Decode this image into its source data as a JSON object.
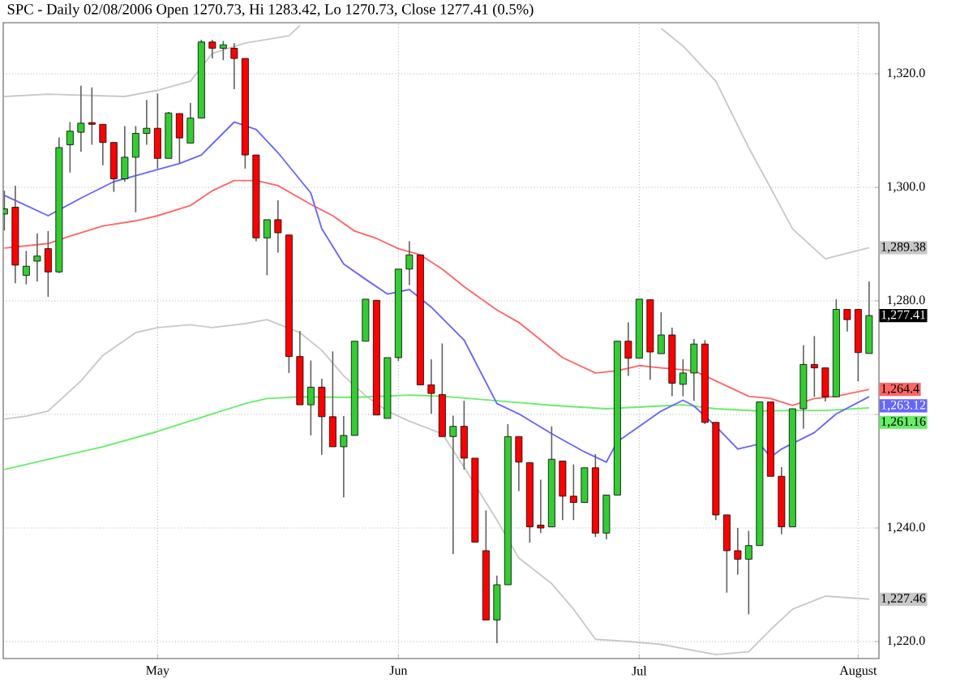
{
  "chart_data": {
    "type": "candlestick",
    "title": "SPC - Daily 02/08/2006 Open 1270.73, Hi 1283.42, Lo 1270.73, Close 1277.41 (0.5%)",
    "categories": [
      null,
      null,
      null,
      null,
      null,
      null,
      null,
      null,
      null,
      null,
      null,
      null,
      null,
      null,
      "May",
      null,
      null,
      null,
      null,
      null,
      null,
      null,
      null,
      null,
      null,
      null,
      null,
      null,
      null,
      null,
      null,
      null,
      null,
      null,
      null,
      null,
      "Jun",
      null,
      null,
      null,
      null,
      null,
      null,
      null,
      null,
      null,
      null,
      null,
      null,
      null,
      null,
      null,
      null,
      null,
      null,
      null,
      null,
      null,
      "Jul",
      null,
      null,
      null,
      null,
      null,
      null,
      null,
      null,
      null,
      null,
      null,
      null,
      null,
      null,
      null,
      null,
      null,
      null,
      null,
      "August",
      null
    ],
    "ohlc": [
      [
        1295.3,
        1299.4,
        1292.4,
        1296.2
      ],
      [
        1296.5,
        1300.3,
        1283.1,
        1286.3
      ],
      [
        1284.5,
        1288.8,
        1282.9,
        1286.1
      ],
      [
        1287.0,
        1291.9,
        1283.4,
        1287.9
      ],
      [
        1289.2,
        1292.3,
        1280.7,
        1285.1
      ],
      [
        1285.1,
        1308.8,
        1284.9,
        1307.0
      ],
      [
        1307.5,
        1311.5,
        1302.6,
        1309.9
      ],
      [
        1309.7,
        1317.9,
        1306.3,
        1311.3
      ],
      [
        1311.4,
        1317.6,
        1307.5,
        1311.1
      ],
      [
        1311.1,
        1311.1,
        1303.9,
        1307.9
      ],
      [
        1307.9,
        1307.9,
        1299.2,
        1301.5
      ],
      [
        1301.5,
        1310.8,
        1301.0,
        1305.3
      ],
      [
        1305.3,
        1310.8,
        1295.6,
        1309.5
      ],
      [
        1309.5,
        1315.4,
        1307.5,
        1310.4
      ],
      [
        1310.4,
        1316.5,
        1303.3,
        1305.1
      ],
      [
        1305.1,
        1313.3,
        1305.1,
        1313.1
      ],
      [
        1313.0,
        1313.0,
        1304.2,
        1308.7
      ],
      [
        1307.8,
        1314.9,
        1307.8,
        1312.2
      ],
      [
        1312.2,
        1326.0,
        1312.2,
        1325.6
      ],
      [
        1325.6,
        1326.0,
        1322.7,
        1324.5
      ],
      [
        1324.5,
        1325.8,
        1322.4,
        1325.1
      ],
      [
        1324.5,
        1325.4,
        1317.3,
        1322.7
      ],
      [
        1322.7,
        1322.7,
        1303.3,
        1305.7
      ],
      [
        1305.7,
        1305.7,
        1290.5,
        1291.1
      ],
      [
        1291.1,
        1294.3,
        1284.5,
        1294.3
      ],
      [
        1294.3,
        1297.7,
        1288.5,
        1292.0
      ],
      [
        1291.6,
        1291.6,
        1267.3,
        1270.2
      ],
      [
        1270.2,
        1274.7,
        1261.7,
        1261.7
      ],
      [
        1261.7,
        1269.5,
        1256.3,
        1264.8
      ],
      [
        1264.8,
        1266.3,
        1252.9,
        1259.6
      ],
      [
        1259.6,
        1271.1,
        1254.3,
        1254.3
      ],
      [
        1254.3,
        1259.7,
        1245.4,
        1256.3
      ],
      [
        1256.3,
        1272.9,
        1256.3,
        1272.9
      ],
      [
        1272.9,
        1280.3,
        1272.9,
        1280.3
      ],
      [
        1280.1,
        1280.1,
        1259.9,
        1259.9
      ],
      [
        1259.3,
        1270.0,
        1259.3,
        1270.0
      ],
      [
        1270.0,
        1285.6,
        1269.4,
        1285.6
      ],
      [
        1285.6,
        1290.5,
        1282.8,
        1288.1
      ],
      [
        1288.1,
        1288.1,
        1265.2,
        1265.2
      ],
      [
        1265.2,
        1269.7,
        1260.1,
        1263.7
      ],
      [
        1263.5,
        1272.5,
        1256.1,
        1256.1
      ],
      [
        1256.1,
        1259.8,
        1235.4,
        1257.9
      ],
      [
        1257.9,
        1262.4,
        1250.3,
        1252.3
      ],
      [
        1252.3,
        1252.3,
        1237.5,
        1237.5
      ],
      [
        1236.0,
        1243.1,
        1223.8,
        1223.8
      ],
      [
        1223.8,
        1231.6,
        1219.7,
        1230.0
      ],
      [
        1230.0,
        1258.3,
        1230.0,
        1256.1
      ],
      [
        1256.1,
        1256.1,
        1246.5,
        1251.6
      ],
      [
        1251.5,
        1251.5,
        1237.4,
        1240.2
      ],
      [
        1240.5,
        1248.5,
        1239.1,
        1240.0
      ],
      [
        1240.2,
        1257.9,
        1240.2,
        1252.1
      ],
      [
        1251.8,
        1251.8,
        1241.4,
        1245.6
      ],
      [
        1245.6,
        1251.2,
        1241.4,
        1244.5
      ],
      [
        1244.5,
        1250.6,
        1244.5,
        1250.6
      ],
      [
        1250.6,
        1253.0,
        1238.4,
        1239.1
      ],
      [
        1239.1,
        1245.8,
        1238.0,
        1245.8
      ],
      [
        1245.8,
        1272.9,
        1245.8,
        1272.9
      ],
      [
        1272.9,
        1276.2,
        1266.8,
        1269.9
      ],
      [
        1269.9,
        1280.3,
        1269.9,
        1280.3
      ],
      [
        1280.2,
        1280.2,
        1266.1,
        1271.0
      ],
      [
        1270.7,
        1278.0,
        1270.7,
        1274.0
      ],
      [
        1274.0,
        1275.3,
        1263.2,
        1265.5
      ],
      [
        1265.3,
        1269.7,
        1263.2,
        1267.3
      ],
      [
        1267.3,
        1273.3,
        1262.4,
        1272.4
      ],
      [
        1272.4,
        1273.1,
        1258.3,
        1258.6
      ],
      [
        1258.6,
        1258.6,
        1241.4,
        1242.3
      ],
      [
        1242.3,
        1242.3,
        1228.6,
        1236.0
      ],
      [
        1236.0,
        1240.0,
        1231.8,
        1234.5
      ],
      [
        1234.5,
        1239.5,
        1224.8,
        1236.9
      ],
      [
        1236.9,
        1262.2,
        1236.9,
        1262.2
      ],
      [
        1262.2,
        1262.2,
        1249.1,
        1249.1
      ],
      [
        1249.1,
        1250.7,
        1238.9,
        1240.2
      ],
      [
        1240.2,
        1261.0,
        1240.2,
        1261.0
      ],
      [
        1261.0,
        1272.2,
        1257.5,
        1268.8
      ],
      [
        1268.8,
        1273.8,
        1263.1,
        1268.2
      ],
      [
        1268.2,
        1268.2,
        1262.3,
        1263.1
      ],
      [
        1263.1,
        1280.3,
        1263.1,
        1278.5
      ],
      [
        1278.5,
        1278.5,
        1274.6,
        1276.7
      ],
      [
        1278.5,
        1278.5,
        1265.8,
        1270.9
      ],
      [
        1270.73,
        1283.42,
        1270.73,
        1277.41
      ]
    ],
    "colors": [
      "#33cc33",
      "#ff0000",
      "#33cc33",
      "#33cc33",
      "#ff0000",
      "#33cc33",
      "#33cc33",
      "#33cc33",
      "#ff0000",
      "#ff0000",
      "#ff0000",
      "#33cc33",
      "#33cc33",
      "#33cc33",
      "#ff0000",
      "#33cc33",
      "#ff0000",
      "#33cc33",
      "#33cc33",
      "#ff0000",
      "#33cc33",
      "#ff0000",
      "#ff0000",
      "#ff0000",
      "#33cc33",
      "#ff0000",
      "#ff0000",
      "#ff0000",
      "#33cc33",
      "#ff0000",
      "#ff0000",
      "#33cc33",
      "#33cc33",
      "#33cc33",
      "#ff0000",
      "#33cc33",
      "#33cc33",
      "#33cc33",
      "#ff0000",
      "#ff0000",
      "#ff0000",
      "#33cc33",
      "#ff0000",
      "#ff0000",
      "#ff0000",
      "#33cc33",
      "#33cc33",
      "#ff0000",
      "#ff0000",
      "#ff0000",
      "#33cc33",
      "#ff0000",
      "#ff0000",
      "#33cc33",
      "#ff0000",
      "#33cc33",
      "#33cc33",
      "#ff0000",
      "#33cc33",
      "#ff0000",
      "#33cc33",
      "#ff0000",
      "#33cc33",
      "#33cc33",
      "#ff0000",
      "#ff0000",
      "#ff0000",
      "#ff0000",
      "#33cc33",
      "#33cc33",
      "#ff0000",
      "#ff0000",
      "#33cc33",
      "#33cc33",
      "#ff0000",
      "#ff0000",
      "#33cc33",
      "#ff0000",
      "#ff0000",
      "#33cc33"
    ],
    "series": [
      {
        "type": "line",
        "color": "#c8c8c8",
        "values": [
          1316.0,
          null,
          null,
          null,
          1316.4,
          null,
          null,
          null,
          null,
          null,
          null,
          1316.0,
          null,
          null,
          1317.1,
          null,
          null,
          1318.7,
          null,
          1323.6,
          null,
          null,
          1325.4,
          null,
          null,
          null,
          1326.7,
          1328.5,
          null,
          null,
          null,
          null,
          null,
          null,
          null,
          null,
          null,
          null,
          null,
          null,
          null,
          null,
          null,
          null,
          null,
          null,
          null,
          null,
          null,
          null,
          null,
          null,
          null,
          null,
          null,
          null,
          null,
          null,
          null,
          null,
          null,
          null,
          null,
          null,
          null,
          null,
          null,
          null,
          null,
          null,
          null,
          null,
          null,
          null,
          null,
          null,
          null,
          null,
          null,
          null
        ]
      },
      {
        "type": "line",
        "color": "#c8c8c8",
        "values": [
          null,
          null,
          null,
          null,
          null,
          null,
          null,
          null,
          null,
          null,
          null,
          null,
          null,
          null,
          null,
          null,
          null,
          null,
          null,
          null,
          null,
          null,
          null,
          null,
          null,
          null,
          null,
          null,
          null,
          null,
          null,
          null,
          null,
          null,
          null,
          null,
          null,
          null,
          null,
          null,
          null,
          null,
          null,
          null,
          null,
          null,
          null,
          null,
          null,
          null,
          null,
          null,
          null,
          null,
          null,
          null,
          null,
          null,
          null,
          null,
          1328.0,
          null,
          1324.9,
          null,
          null,
          1318.7,
          null,
          null,
          1307.0,
          null,
          1299.9,
          null,
          1292.7,
          null,
          null,
          1287.4,
          null,
          null,
          null,
          1289.38
        ],
        "value_labels": [
          null,
          null,
          null,
          null,
          null,
          null,
          null,
          null,
          null,
          null,
          null,
          null,
          null,
          null,
          null,
          null,
          null,
          null,
          null,
          null,
          null,
          null,
          null,
          null,
          null,
          null,
          null,
          null,
          null,
          null,
          null,
          null,
          null,
          null,
          null,
          null,
          null,
          null,
          null,
          null,
          null,
          null,
          null,
          null,
          null,
          null,
          null,
          null,
          null,
          null,
          null,
          null,
          null,
          null,
          null,
          null,
          null,
          null,
          null,
          null,
          null,
          null,
          null,
          null,
          null,
          null,
          null,
          null,
          null,
          null,
          null,
          null,
          null,
          null,
          null,
          null,
          null,
          null,
          null,
          "1,289.38"
        ]
      },
      {
        "type": "line",
        "color": "#c8c8c8",
        "values": [
          1259.2,
          null,
          1259.7,
          null,
          1260.6,
          null,
          null,
          1265.9,
          null,
          1270.4,
          null,
          null,
          1274.4,
          null,
          1275.3,
          null,
          null,
          1275.8,
          null,
          1275.3,
          null,
          null,
          1276.0,
          null,
          1276.7,
          null,
          null,
          1274.4,
          null,
          1271.3,
          null,
          1266.8,
          null,
          1263.3,
          null,
          1260.6,
          null,
          1258.8,
          null,
          null,
          1256.6,
          null,
          1250.7,
          null,
          null,
          1241.4,
          null,
          1234.7,
          null,
          null,
          1230.2,
          null,
          1225.7,
          null,
          1220.4,
          null,
          null,
          1220.0,
          null,
          null,
          1219.5,
          null,
          null,
          null,
          null,
          1217.7,
          null,
          null,
          1218.2,
          null,
          1222.1,
          null,
          1225.7,
          null,
          null,
          1228.0,
          null,
          null,
          null,
          1227.46
        ],
        "value_labels": [
          null,
          null,
          null,
          null,
          null,
          null,
          null,
          null,
          null,
          null,
          null,
          null,
          null,
          null,
          null,
          null,
          null,
          null,
          null,
          null,
          null,
          null,
          null,
          null,
          null,
          null,
          null,
          null,
          null,
          null,
          null,
          null,
          null,
          null,
          null,
          null,
          null,
          null,
          null,
          null,
          null,
          null,
          null,
          null,
          null,
          null,
          null,
          null,
          null,
          null,
          null,
          null,
          null,
          null,
          null,
          null,
          null,
          null,
          null,
          null,
          null,
          null,
          null,
          null,
          null,
          null,
          null,
          null,
          null,
          null,
          null,
          null,
          null,
          null,
          null,
          null,
          null,
          null,
          null,
          "1,227.46"
        ]
      },
      {
        "type": "line",
        "color": "#66ee66",
        "values": [
          1250.3,
          null,
          null,
          null,
          1252.1,
          null,
          null,
          null,
          null,
          1254.3,
          null,
          null,
          null,
          null,
          1257.0,
          null,
          null,
          null,
          null,
          1260.1,
          null,
          null,
          1261.9,
          null,
          1262.8,
          null,
          null,
          1263.1,
          null,
          null,
          null,
          null,
          1263.0,
          null,
          null,
          null,
          null,
          1263.4,
          null,
          null,
          1263.2,
          null,
          null,
          null,
          null,
          1262.4,
          null,
          null,
          null,
          null,
          1261.6,
          null,
          null,
          null,
          null,
          1261.0,
          null,
          null,
          null,
          null,
          1261.5,
          null,
          1261.7,
          null,
          null,
          1261.0,
          null,
          null,
          null,
          1260.6,
          null,
          null,
          1260.7,
          null,
          null,
          1260.7,
          null,
          null,
          null,
          1261.16
        ],
        "value_labels": [
          null,
          null,
          null,
          null,
          null,
          null,
          null,
          null,
          null,
          null,
          null,
          null,
          null,
          null,
          null,
          null,
          null,
          null,
          null,
          null,
          null,
          null,
          null,
          null,
          null,
          null,
          null,
          null,
          null,
          null,
          null,
          null,
          null,
          null,
          null,
          null,
          null,
          null,
          null,
          null,
          null,
          null,
          null,
          null,
          null,
          null,
          null,
          null,
          null,
          null,
          null,
          null,
          null,
          null,
          null,
          null,
          null,
          null,
          null,
          null,
          null,
          null,
          null,
          null,
          null,
          null,
          null,
          null,
          null,
          null,
          null,
          null,
          null,
          null,
          null,
          null,
          null,
          null,
          null,
          "1,261.16"
        ]
      },
      {
        "type": "line",
        "color": "#ff6666",
        "values": [
          1289.3,
          null,
          null,
          null,
          1290.1,
          null,
          1291.4,
          null,
          null,
          1293.2,
          null,
          null,
          1294.1,
          null,
          1295.0,
          null,
          null,
          1296.8,
          null,
          1299.4,
          null,
          1301.2,
          null,
          1301.2,
          null,
          1300.3,
          null,
          null,
          1297.0,
          null,
          1295.0,
          null,
          1292.3,
          null,
          1291.0,
          null,
          1289.2,
          null,
          1288.1,
          null,
          1285.6,
          null,
          1282.5,
          null,
          null,
          1278.4,
          null,
          1276.2,
          null,
          1273.1,
          null,
          1270.0,
          null,
          null,
          1267.3,
          null,
          1267.7,
          null,
          1268.6,
          null,
          1268.2,
          null,
          null,
          1267.7,
          null,
          1265.9,
          null,
          null,
          1263.2,
          null,
          1262.8,
          null,
          1261.6,
          null,
          1262.8,
          null,
          1263.2,
          null,
          null,
          1264.4
        ],
        "value_labels": [
          null,
          null,
          null,
          null,
          null,
          null,
          null,
          null,
          null,
          null,
          null,
          null,
          null,
          null,
          null,
          null,
          null,
          null,
          null,
          null,
          null,
          null,
          null,
          null,
          null,
          null,
          null,
          null,
          null,
          null,
          null,
          null,
          null,
          null,
          null,
          null,
          null,
          null,
          null,
          null,
          null,
          null,
          null,
          null,
          null,
          null,
          null,
          null,
          null,
          null,
          null,
          null,
          null,
          null,
          null,
          null,
          null,
          null,
          null,
          null,
          null,
          null,
          null,
          null,
          null,
          null,
          null,
          null,
          null,
          null,
          null,
          null,
          null,
          null,
          null,
          null,
          null,
          null,
          null,
          "1,264.4"
        ]
      },
      {
        "type": "line",
        "color": "#6666ff",
        "values": [
          1298.6,
          null,
          null,
          null,
          1295.0,
          null,
          null,
          1298.1,
          null,
          null,
          1301.0,
          null,
          null,
          1302.6,
          null,
          null,
          1304.2,
          null,
          1305.7,
          null,
          null,
          1311.5,
          null,
          1310.2,
          null,
          1306.1,
          null,
          null,
          1299.0,
          1292.7,
          null,
          1286.5,
          null,
          1283.8,
          null,
          1281.2,
          null,
          1282.0,
          null,
          1278.9,
          null,
          null,
          1273.1,
          null,
          null,
          1261.9,
          null,
          1260.1,
          null,
          null,
          1256.6,
          null,
          null,
          1253.4,
          null,
          1251.6,
          1255.2,
          null,
          1257.9,
          null,
          1260.6,
          null,
          1262.5,
          1261.5,
          null,
          1257.9,
          null,
          1253.9,
          null,
          1254.8,
          1252.5,
          1253.9,
          null,
          null,
          1256.8,
          null,
          1260.1,
          null,
          null,
          1263.12
        ],
        "value_labels": [
          null,
          null,
          null,
          null,
          null,
          null,
          null,
          null,
          null,
          null,
          null,
          null,
          null,
          null,
          null,
          null,
          null,
          null,
          null,
          null,
          null,
          null,
          null,
          null,
          null,
          null,
          null,
          null,
          null,
          null,
          null,
          null,
          null,
          null,
          null,
          null,
          null,
          null,
          null,
          null,
          null,
          null,
          null,
          null,
          null,
          null,
          null,
          null,
          null,
          null,
          null,
          null,
          null,
          null,
          null,
          null,
          null,
          null,
          null,
          null,
          null,
          null,
          null,
          null,
          null,
          null,
          null,
          null,
          null,
          null,
          null,
          null,
          null,
          null,
          null,
          null,
          null,
          null,
          null,
          "1,263.12"
        ]
      }
    ],
    "annotations": [
      "1,277.41"
    ],
    "ylim": [
      1217,
      1329
    ],
    "yticks": [
      {
        "value": 1220,
        "label": "1,220.0"
      },
      {
        "value": 1240,
        "label": "1,240.0"
      },
      {
        "value": 1260,
        "label": null
      },
      {
        "value": 1280,
        "label": "1,280.0"
      },
      {
        "value": 1300,
        "label": "1,300.0"
      },
      {
        "value": 1320,
        "label": "1,320.0"
      }
    ],
    "grid": true,
    "marker": "none",
    "line_style": "solid"
  }
}
